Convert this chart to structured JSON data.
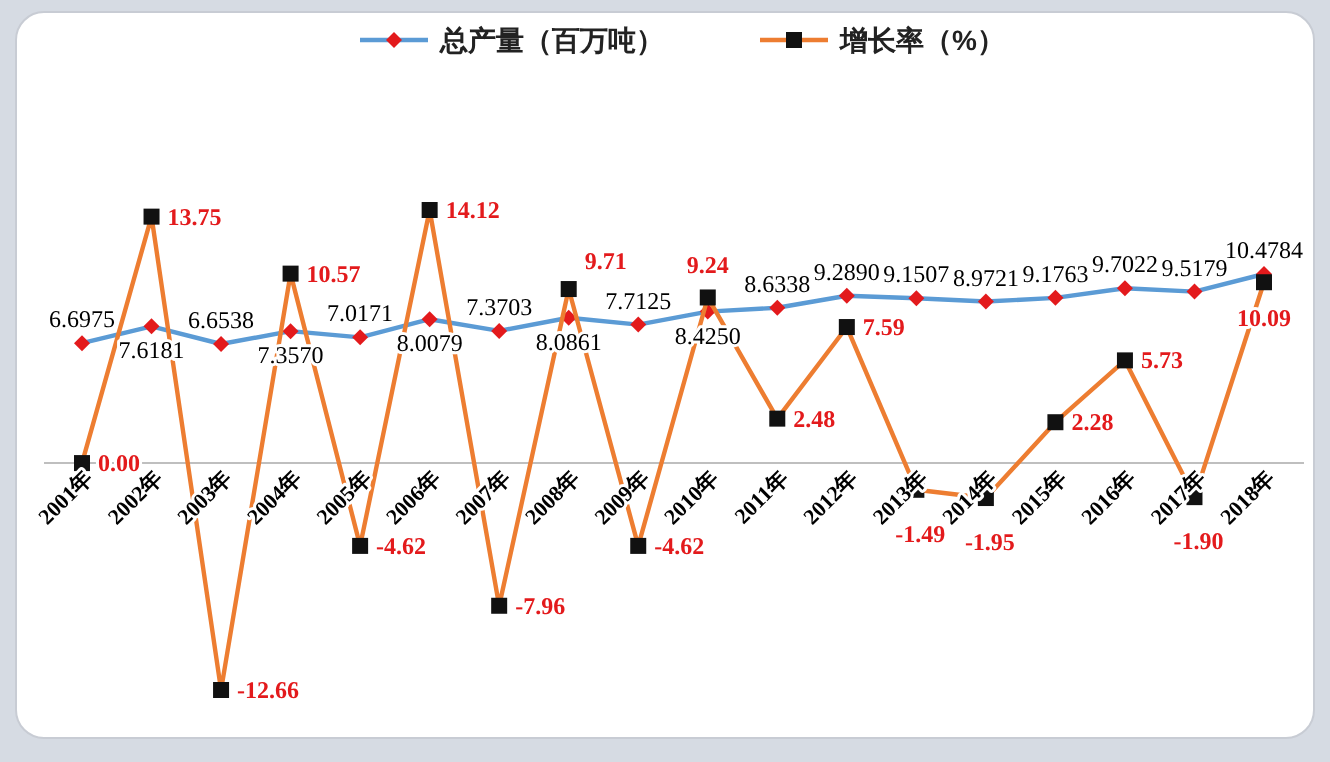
{
  "chart_data": {
    "type": "line",
    "categories": [
      "2001年",
      "2002年",
      "2003年",
      "2004年",
      "2005年",
      "2006年",
      "2007年",
      "2008年",
      "2009年",
      "2010年",
      "2011年",
      "2012年",
      "2013年",
      "2014年",
      "2015年",
      "2016年",
      "2017年",
      "2018年"
    ],
    "series": [
      {
        "name": "总产量（百万吨）",
        "color": "#5b9bd5",
        "marker": "diamond",
        "axis": "y2",
        "values": [
          6.6975,
          7.6181,
          6.6538,
          7.357,
          7.0171,
          8.0079,
          7.3703,
          8.0861,
          7.7125,
          8.425,
          8.6338,
          9.289,
          9.1507,
          8.9721,
          9.1763,
          9.7022,
          9.5179,
          10.4784
        ],
        "value_labels": [
          "6.6975",
          "7.6181",
          "6.6538",
          "7.3570",
          "7.0171",
          "8.0079",
          "7.3703",
          "8.0861",
          "7.7125",
          "8.4250",
          "8.6338",
          "9.2890",
          "9.1507",
          "8.9721",
          "9.1763",
          "9.7022",
          "9.5179",
          "10.4784"
        ]
      },
      {
        "name": "增长率（%）",
        "color": "#ed7d31",
        "marker": "square",
        "values": [
          0.0,
          13.75,
          -12.66,
          10.57,
          -4.62,
          14.12,
          -7.96,
          9.71,
          -4.62,
          9.24,
          2.48,
          7.59,
          -1.49,
          -1.95,
          2.28,
          5.73,
          -1.9,
          10.09
        ],
        "value_labels": [
          "0.00",
          "13.75",
          "-12.66",
          "10.57",
          "-4.62",
          "14.12",
          "-7.96",
          "9.71",
          "-4.62",
          "9.24",
          "2.48",
          "7.59",
          "-1.49",
          "-1.95",
          "2.28",
          "5.73",
          "-1.90",
          "10.09"
        ]
      }
    ],
    "tick_labels": "x",
    "legend": "top"
  }
}
